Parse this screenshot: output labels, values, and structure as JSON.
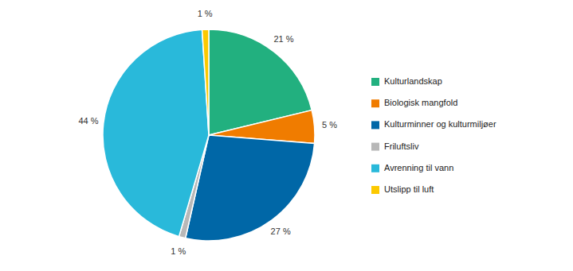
{
  "chart_data": {
    "type": "pie",
    "categories": [
      "Kulturlandskap",
      "Biologisk mangfold",
      "Kulturminner og kulturmiljøer",
      "Friluftsliv",
      "Avrenning til vann",
      "Utslipp til luft"
    ],
    "values": [
      21,
      5,
      27,
      1,
      44,
      1
    ],
    "value_labels": [
      "21 %",
      "5 %",
      "27 %",
      "1 %",
      "44 %",
      "1 %"
    ],
    "colors": [
      "#22b07f",
      "#f07c00",
      "#0067a7",
      "#b8b8b8",
      "#29b9da",
      "#fcc900"
    ],
    "data_labels": true,
    "legend": "right"
  }
}
